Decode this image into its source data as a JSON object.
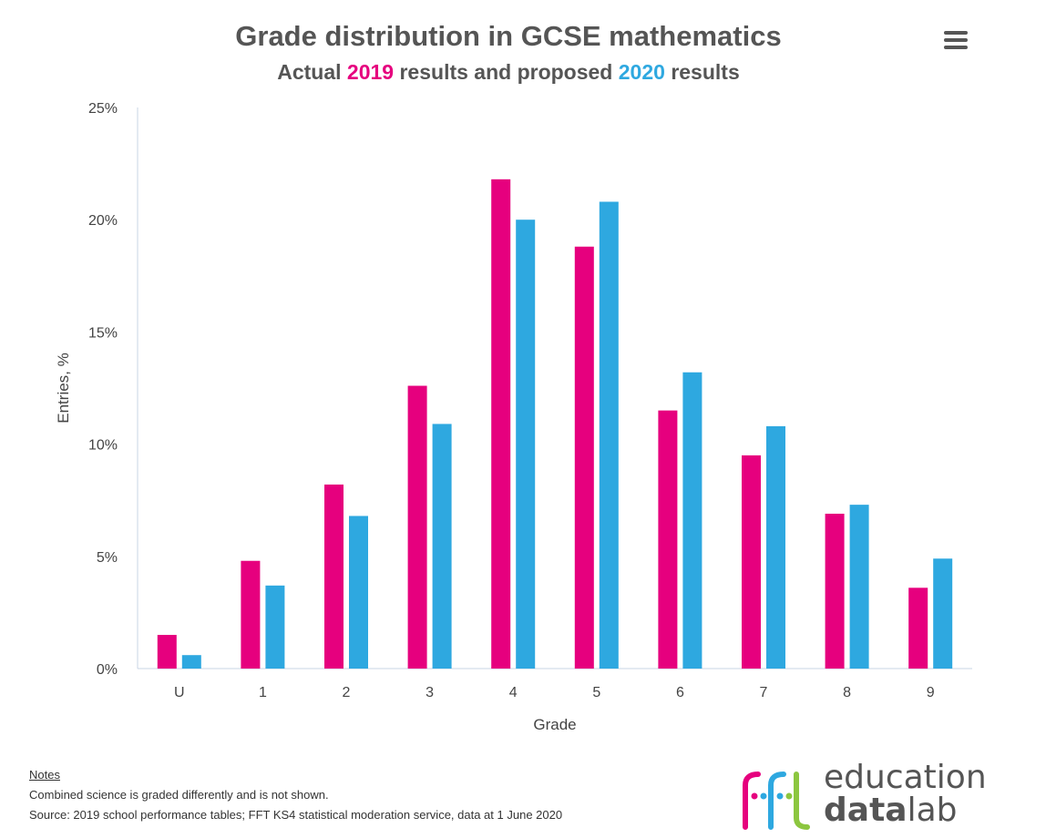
{
  "header": {
    "title": "Grade distribution in GCSE mathematics",
    "subtitle_prefix": "Actual",
    "subtitle_year1": "2019",
    "subtitle_middle": "results and proposed",
    "subtitle_year2": "2020",
    "subtitle_suffix": "results"
  },
  "menu": {
    "icon": "hamburger-menu-icon"
  },
  "colors": {
    "series_2019": "#e6007e",
    "series_2020": "#2ea8e0",
    "logo_magenta": "#e6007e",
    "logo_blue": "#2ea8e0",
    "logo_green": "#8cc63f"
  },
  "chart_data": {
    "type": "bar",
    "title": "Grade distribution in GCSE mathematics",
    "subtitle": "Actual 2019 results and proposed 2020 results",
    "xlabel": "Grade",
    "ylabel": "Entries, %",
    "categories": [
      "U",
      "1",
      "2",
      "3",
      "4",
      "5",
      "6",
      "7",
      "8",
      "9"
    ],
    "series": [
      {
        "name": "2019",
        "values": [
          1.5,
          4.8,
          8.2,
          12.6,
          21.8,
          18.8,
          11.5,
          9.5,
          6.9,
          3.6
        ]
      },
      {
        "name": "2020",
        "values": [
          0.6,
          3.7,
          6.8,
          10.9,
          20.0,
          20.8,
          13.2,
          10.8,
          7.3,
          4.9
        ]
      }
    ],
    "ylim": [
      0,
      25
    ],
    "yticks": [
      0,
      5,
      10,
      15,
      20,
      25
    ],
    "ytick_labels": [
      "0%",
      "5%",
      "10%",
      "15%",
      "20%",
      "25%"
    ],
    "grid": false,
    "legend": "none"
  },
  "notes": {
    "heading": "Notes",
    "line1": "Combined science is graded differently and is not shown.",
    "line2": "Source: 2019 school performance tables; FFT KS4 statistical moderation service, data at 1 June 2020"
  },
  "logo": {
    "word1": "education",
    "word2_bold": "data",
    "word2_light": "lab"
  }
}
